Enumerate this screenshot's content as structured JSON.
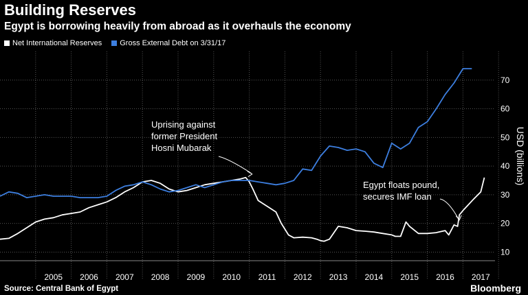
{
  "header": {
    "title": "Building Reserves",
    "subtitle": "Egypt is borrowing heavily from abroad as it overhauls the economy"
  },
  "footer": {
    "source": "Source: Central Bank of Egypt",
    "brand": "Bloomberg"
  },
  "chart_data": {
    "type": "line",
    "title": "Building Reserves",
    "subtitle": "Egypt is borrowing heavily from abroad as it overhauls the economy",
    "ylabel": "USD (billions)",
    "xlabel": "",
    "ylim": [
      7,
      80
    ],
    "xlim": [
      2004.0,
      2017.9
    ],
    "x_ticks": [
      2005,
      2006,
      2007,
      2008,
      2009,
      2010,
      2011,
      2012,
      2013,
      2014,
      2015,
      2016,
      2017
    ],
    "y_ticks": [
      10,
      20,
      30,
      40,
      50,
      60,
      70
    ],
    "grid": true,
    "legend_position": "top-left",
    "colors": {
      "reserves": "#ffffff",
      "debt": "#3d7fe0",
      "grid": "#555555",
      "background": "#000000"
    },
    "series": [
      {
        "name": "Net International Reserves",
        "key": "reserves",
        "x": [
          2004.0,
          2004.25,
          2004.5,
          2004.75,
          2005.0,
          2005.25,
          2005.5,
          2005.75,
          2006.0,
          2006.25,
          2006.5,
          2006.75,
          2007.0,
          2007.25,
          2007.5,
          2007.75,
          2008.0,
          2008.25,
          2008.5,
          2008.75,
          2009.0,
          2009.25,
          2009.5,
          2009.75,
          2010.0,
          2010.25,
          2010.5,
          2010.75,
          2010.9,
          2011.0,
          2011.1,
          2011.25,
          2011.5,
          2011.75,
          2011.9,
          2012.0,
          2012.1,
          2012.25,
          2012.5,
          2012.75,
          2012.9,
          2013.0,
          2013.1,
          2013.25,
          2013.5,
          2013.75,
          2014.0,
          2014.25,
          2014.5,
          2014.75,
          2015.0,
          2015.1,
          2015.25,
          2015.4,
          2015.5,
          2015.75,
          2016.0,
          2016.25,
          2016.5,
          2016.6,
          2016.75,
          2016.85,
          2016.9,
          2017.0,
          2017.15,
          2017.3,
          2017.5,
          2017.6
        ],
        "values": [
          14.5,
          14.8,
          16.5,
          18.5,
          20.5,
          21.5,
          22.0,
          23.0,
          23.5,
          24.0,
          25.5,
          26.5,
          27.5,
          29.0,
          31.0,
          32.5,
          34.5,
          35.0,
          34.0,
          32.0,
          31.0,
          31.5,
          32.5,
          33.5,
          34.0,
          34.5,
          35.0,
          35.5,
          36.0,
          34.5,
          32.0,
          28.0,
          26.0,
          24.0,
          20.0,
          18.0,
          16.0,
          15.0,
          15.2,
          15.0,
          14.5,
          14.0,
          13.8,
          14.5,
          19.0,
          18.5,
          17.5,
          17.3,
          17.0,
          16.5,
          16.0,
          15.5,
          15.5,
          20.5,
          19.0,
          16.5,
          16.5,
          16.8,
          17.5,
          16.0,
          19.5,
          19.0,
          23.0,
          24.5,
          26.5,
          28.5,
          31.0,
          36.0
        ]
      },
      {
        "name": "Gross External Debt on 3/31/17",
        "key": "debt",
        "x": [
          2004.0,
          2004.25,
          2004.5,
          2004.75,
          2005.0,
          2005.25,
          2005.5,
          2005.75,
          2006.0,
          2006.25,
          2006.5,
          2006.75,
          2007.0,
          2007.25,
          2007.5,
          2007.75,
          2008.0,
          2008.25,
          2008.5,
          2008.75,
          2009.0,
          2009.25,
          2009.5,
          2009.75,
          2010.0,
          2010.25,
          2010.5,
          2010.75,
          2011.0,
          2011.25,
          2011.5,
          2011.75,
          2012.0,
          2012.25,
          2012.5,
          2012.75,
          2013.0,
          2013.25,
          2013.5,
          2013.75,
          2014.0,
          2014.25,
          2014.5,
          2014.75,
          2015.0,
          2015.25,
          2015.5,
          2015.75,
          2016.0,
          2016.25,
          2016.5,
          2016.75,
          2017.0,
          2017.25
        ],
        "values": [
          29.5,
          31.0,
          30.5,
          29.0,
          29.5,
          30.0,
          29.5,
          29.5,
          29.5,
          29.0,
          29.0,
          29.0,
          29.5,
          31.5,
          33.0,
          33.5,
          34.5,
          33.5,
          32.0,
          31.0,
          31.5,
          32.5,
          33.5,
          32.5,
          33.5,
          34.5,
          35.0,
          35.0,
          35.0,
          34.5,
          34.0,
          33.5,
          34.0,
          35.0,
          39.0,
          38.5,
          43.5,
          47.0,
          46.5,
          45.5,
          46.0,
          45.0,
          41.0,
          39.5,
          48.0,
          46.0,
          48.0,
          53.5,
          55.5,
          60.0,
          65.0,
          69.0,
          74.0,
          74.0
        ]
      }
    ],
    "annotations": [
      {
        "key": "uprising",
        "lines": [
          "Uprising against",
          "former President",
          "Hosni Mubarak"
        ],
        "x": 2011.1,
        "y": 36.5
      },
      {
        "key": "float",
        "lines": [
          "Egypt floats pound,",
          "secures IMF loan"
        ],
        "x": 2016.9,
        "y": 20.0
      }
    ]
  }
}
